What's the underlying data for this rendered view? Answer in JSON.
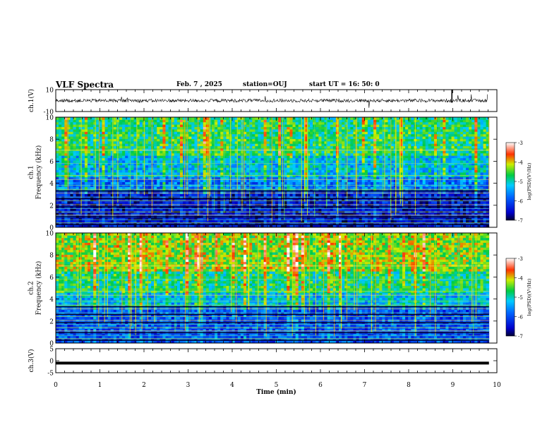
{
  "header": {
    "title": "VLF Spectra",
    "date": "Feb. 7 , 2025",
    "station": "station=OUJ",
    "start": "start UT = 16: 50: 0"
  },
  "chart_data": [
    {
      "type": "line",
      "panel": "ch1-waveform",
      "ylabel": "ch.1(V)",
      "ylim": [
        -10,
        10
      ],
      "yticks": [
        "10",
        "-10"
      ],
      "xlim": [
        0,
        10
      ],
      "description_value": "noisy waveform centered near 0 V with occasional spikes"
    },
    {
      "type": "heatmap",
      "panel": "ch1-spectrogram",
      "ylabel": "ch.1\nFrequency (kHz)",
      "ylabel_lines": [
        "ch.1",
        "Frequency (kHz)"
      ],
      "ylim": [
        0,
        10
      ],
      "yticks": [
        "0",
        "2",
        "4",
        "6",
        "8",
        "10"
      ],
      "xlim": [
        0,
        10
      ],
      "colorbar": {
        "label": "log(PSD)(V²/Hz)",
        "range": [
          -7,
          -3
        ],
        "ticks": [
          "-3",
          "-4",
          "-5",
          "-6",
          "-7"
        ]
      }
    },
    {
      "type": "heatmap",
      "panel": "ch2-spectrogram",
      "ylabel": "ch.2\nFrequency (kHz)",
      "ylabel_lines": [
        "ch.2",
        "Frequency (kHz)"
      ],
      "ylim": [
        0,
        10
      ],
      "yticks": [
        "0",
        "2",
        "4",
        "6",
        "8",
        "10"
      ],
      "xlim": [
        0,
        10
      ],
      "colorbar": {
        "label": "log(PSD)(V²/Hz)",
        "range": [
          -7,
          -3
        ],
        "ticks": [
          "-3",
          "-4",
          "-5",
          "-6",
          "-7"
        ]
      }
    },
    {
      "type": "line",
      "panel": "ch3-waveform",
      "ylabel": "ch.3(V)",
      "ylim": [
        -5,
        5
      ],
      "yticks": [
        "5",
        "0",
        "-5"
      ],
      "xlim": [
        0,
        10
      ],
      "constant_value": -1
    }
  ],
  "xaxis": {
    "label": "Time (min)",
    "ticks": [
      "0",
      "1",
      "2",
      "3",
      "4",
      "5",
      "6",
      "7",
      "8",
      "9",
      "10"
    ]
  }
}
